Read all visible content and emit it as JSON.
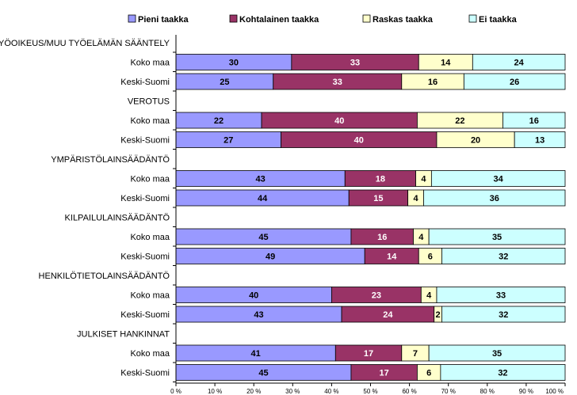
{
  "chart_data": {
    "type": "bar",
    "orientation": "horizontal",
    "stacking": "percent",
    "legend_position": "top",
    "series": [
      {
        "name": "Pieni taakka",
        "color": "#9999FF"
      },
      {
        "name": "Kohtalainen taakka",
        "color": "#993366"
      },
      {
        "name": "Raskas taakka",
        "color": "#FFFFCC"
      },
      {
        "name": "Ei taakka",
        "color": "#CCFFFF"
      }
    ],
    "groups": [
      {
        "label": "TYÖOIKEUS/MUU TYÖELÄMÄN SÄÄNTELY",
        "rows": [
          {
            "label": "Koko maa",
            "values": [
              30,
              33,
              14,
              24
            ]
          },
          {
            "label": "Keski-Suomi",
            "values": [
              25,
              33,
              16,
              26
            ]
          }
        ]
      },
      {
        "label": "VEROTUS",
        "rows": [
          {
            "label": "Koko maa",
            "values": [
              22,
              40,
              22,
              16
            ]
          },
          {
            "label": "Keski-Suomi",
            "values": [
              27,
              40,
              20,
              13
            ]
          }
        ]
      },
      {
        "label": "YMPÄRISTÖLAINSÄÄDÄNTÖ",
        "rows": [
          {
            "label": "Koko maa",
            "values": [
              43,
              18,
              4,
              34
            ]
          },
          {
            "label": "Keski-Suomi",
            "values": [
              44,
              15,
              4,
              36
            ]
          }
        ]
      },
      {
        "label": "KILPAILULAINSÄÄDÄNTÖ",
        "rows": [
          {
            "label": "Koko maa",
            "values": [
              45,
              16,
              4,
              35
            ]
          },
          {
            "label": "Keski-Suomi",
            "values": [
              49,
              14,
              6,
              32
            ]
          }
        ]
      },
      {
        "label": "HENKILÖTIETOLAINSÄÄDÄNTÖ",
        "rows": [
          {
            "label": "Koko maa",
            "values": [
              40,
              23,
              4,
              33
            ]
          },
          {
            "label": "Keski-Suomi",
            "values": [
              43,
              24,
              2,
              32
            ]
          }
        ]
      },
      {
        "label": "JULKISET HANKINNAT",
        "rows": [
          {
            "label": "Koko maa",
            "values": [
              41,
              17,
              7,
              35
            ]
          },
          {
            "label": "Keski-Suomi",
            "values": [
              45,
              17,
              6,
              32
            ]
          }
        ]
      }
    ],
    "x_ticks": [
      "0 %",
      "10 %",
      "20 %",
      "30 %",
      "40 %",
      "50 %",
      "60 %",
      "70 %",
      "80 %",
      "90 %",
      "100 %"
    ],
    "xlim": [
      0,
      100
    ],
    "grid": false
  }
}
